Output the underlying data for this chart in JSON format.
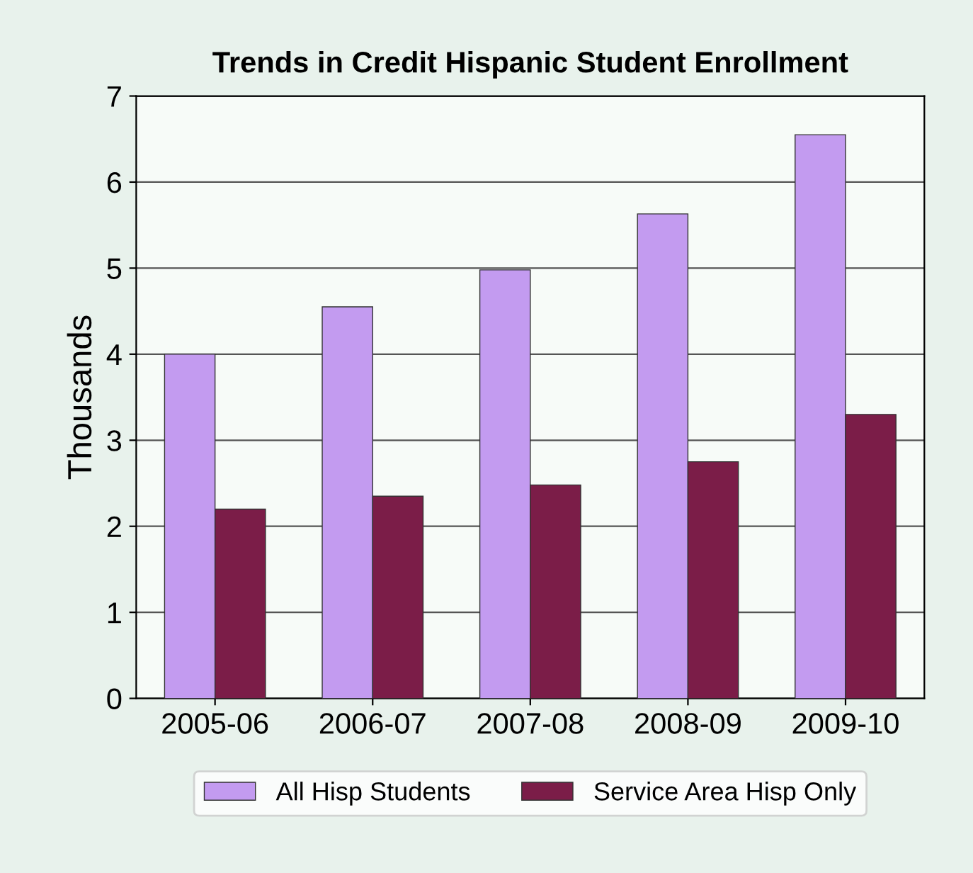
{
  "chart_data": {
    "type": "bar",
    "title": "Trends in Credit Hispanic Student Enrollment",
    "ylabel": "Thousands",
    "categories": [
      "2005-06",
      "2006-07",
      "2007-08",
      "2008-09",
      "2009-10"
    ],
    "series": [
      {
        "name": "All Hisp Students",
        "color": "#c39bf0",
        "values": [
          4.0,
          4.55,
          4.98,
          5.63,
          6.55
        ]
      },
      {
        "name": "Service Area Hisp Only",
        "color": "#7b1d48",
        "values": [
          2.2,
          2.35,
          2.48,
          2.75,
          3.3
        ]
      }
    ],
    "ylim": [
      0,
      7
    ],
    "yticks": [
      0,
      1,
      2,
      3,
      4,
      5,
      6,
      7
    ],
    "grid": "y",
    "legend": "bottom"
  }
}
